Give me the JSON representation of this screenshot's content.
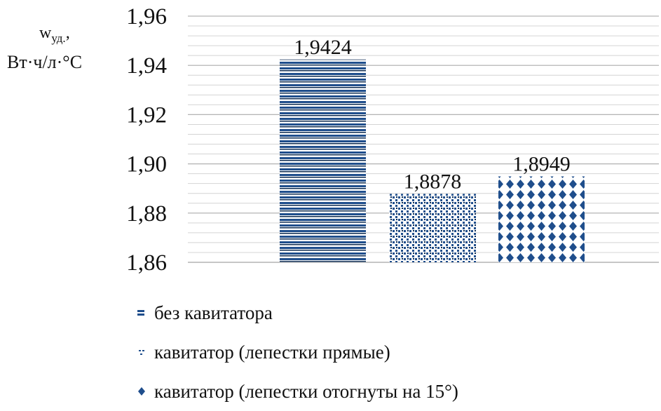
{
  "chart_data": {
    "type": "bar",
    "title": "",
    "xlabel": "",
    "ylabel_line1": "w",
    "ylabel_sub": "уд.",
    "ylabel_suffix": ",",
    "ylabel_line2": "Вт·ч/л·°С",
    "ylim": [
      1.86,
      1.96
    ],
    "ytick_step": 0.02,
    "yticks": [
      "1,86",
      "1,88",
      "1,90",
      "1,92",
      "1,94",
      "1,96"
    ],
    "minor_grid_step": 0.004,
    "grid": true,
    "legend_position": "bottom",
    "series": [
      {
        "name": "без кавитатора",
        "value": 1.9424,
        "label": "1,9424",
        "color": "#1f4e8c",
        "pattern": "horizontal-lines"
      },
      {
        "name": "кавитатор (лепестки прямые)",
        "value": 1.8878,
        "label": "1,8878",
        "color": "#1f4e8c",
        "pattern": "dots"
      },
      {
        "name": "кавитатор (лепестки отогнуты на 15°)",
        "value": 1.8949,
        "label": "1,8949",
        "color": "#1f4e8c",
        "pattern": "diamonds"
      }
    ]
  }
}
